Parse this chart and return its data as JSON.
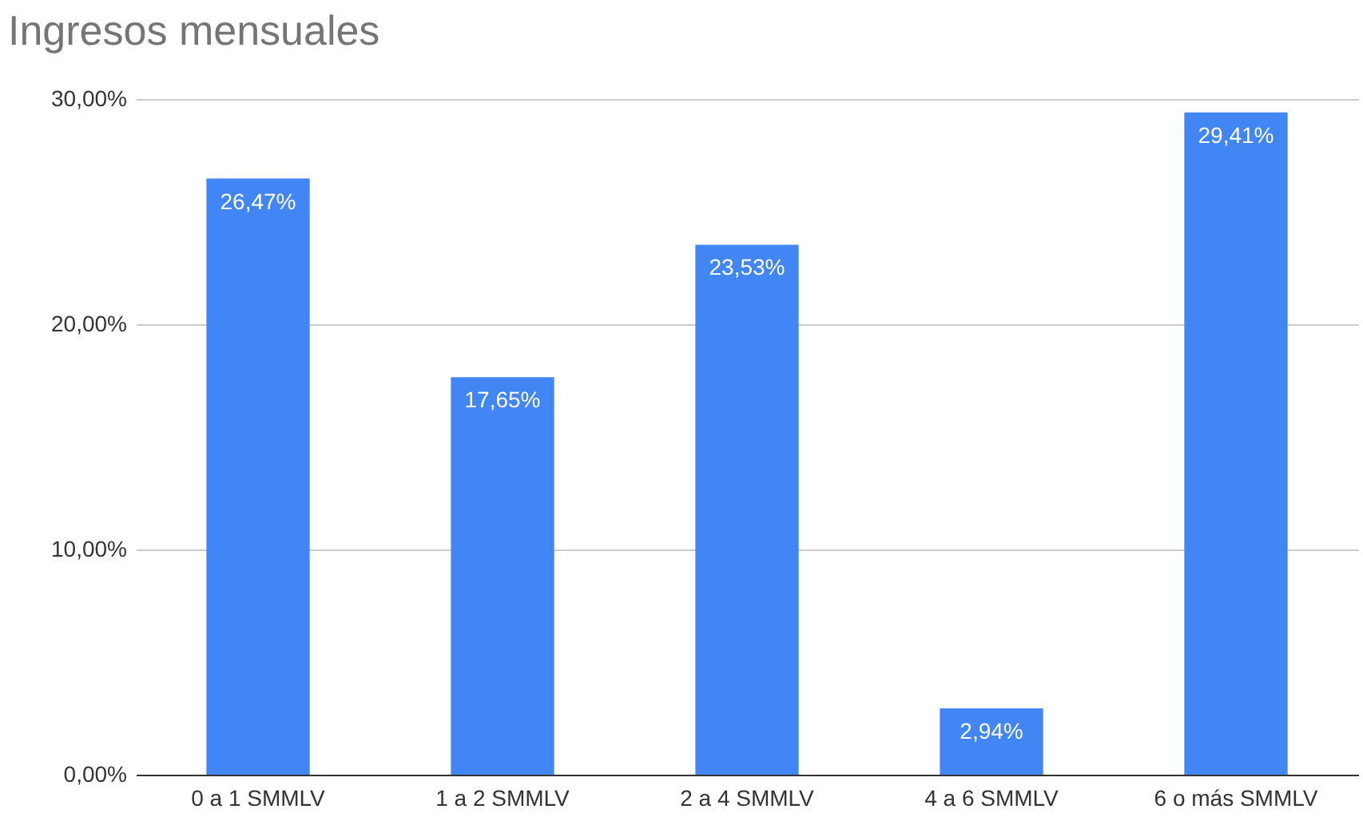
{
  "chart_data": {
    "type": "bar",
    "title": "Ingresos mensuales",
    "categories": [
      "0 a 1 SMMLV",
      "1 a 2 SMMLV",
      "2 a 4 SMMLV",
      "4 a 6 SMMLV",
      "6 o más SMMLV"
    ],
    "values": [
      26.47,
      17.65,
      23.53,
      2.94,
      29.41
    ],
    "value_labels": [
      "26,47%",
      "17,65%",
      "23,53%",
      "2,94%",
      "29,41%"
    ],
    "color": "#4285f4",
    "ylim": [
      0,
      30
    ],
    "yticks": [
      {
        "value": 0,
        "label": "0,00%"
      },
      {
        "value": 10,
        "label": "10,00%"
      },
      {
        "value": 20,
        "label": "20,00%"
      },
      {
        "value": 30,
        "label": "30,00%"
      }
    ],
    "grid": "y"
  }
}
